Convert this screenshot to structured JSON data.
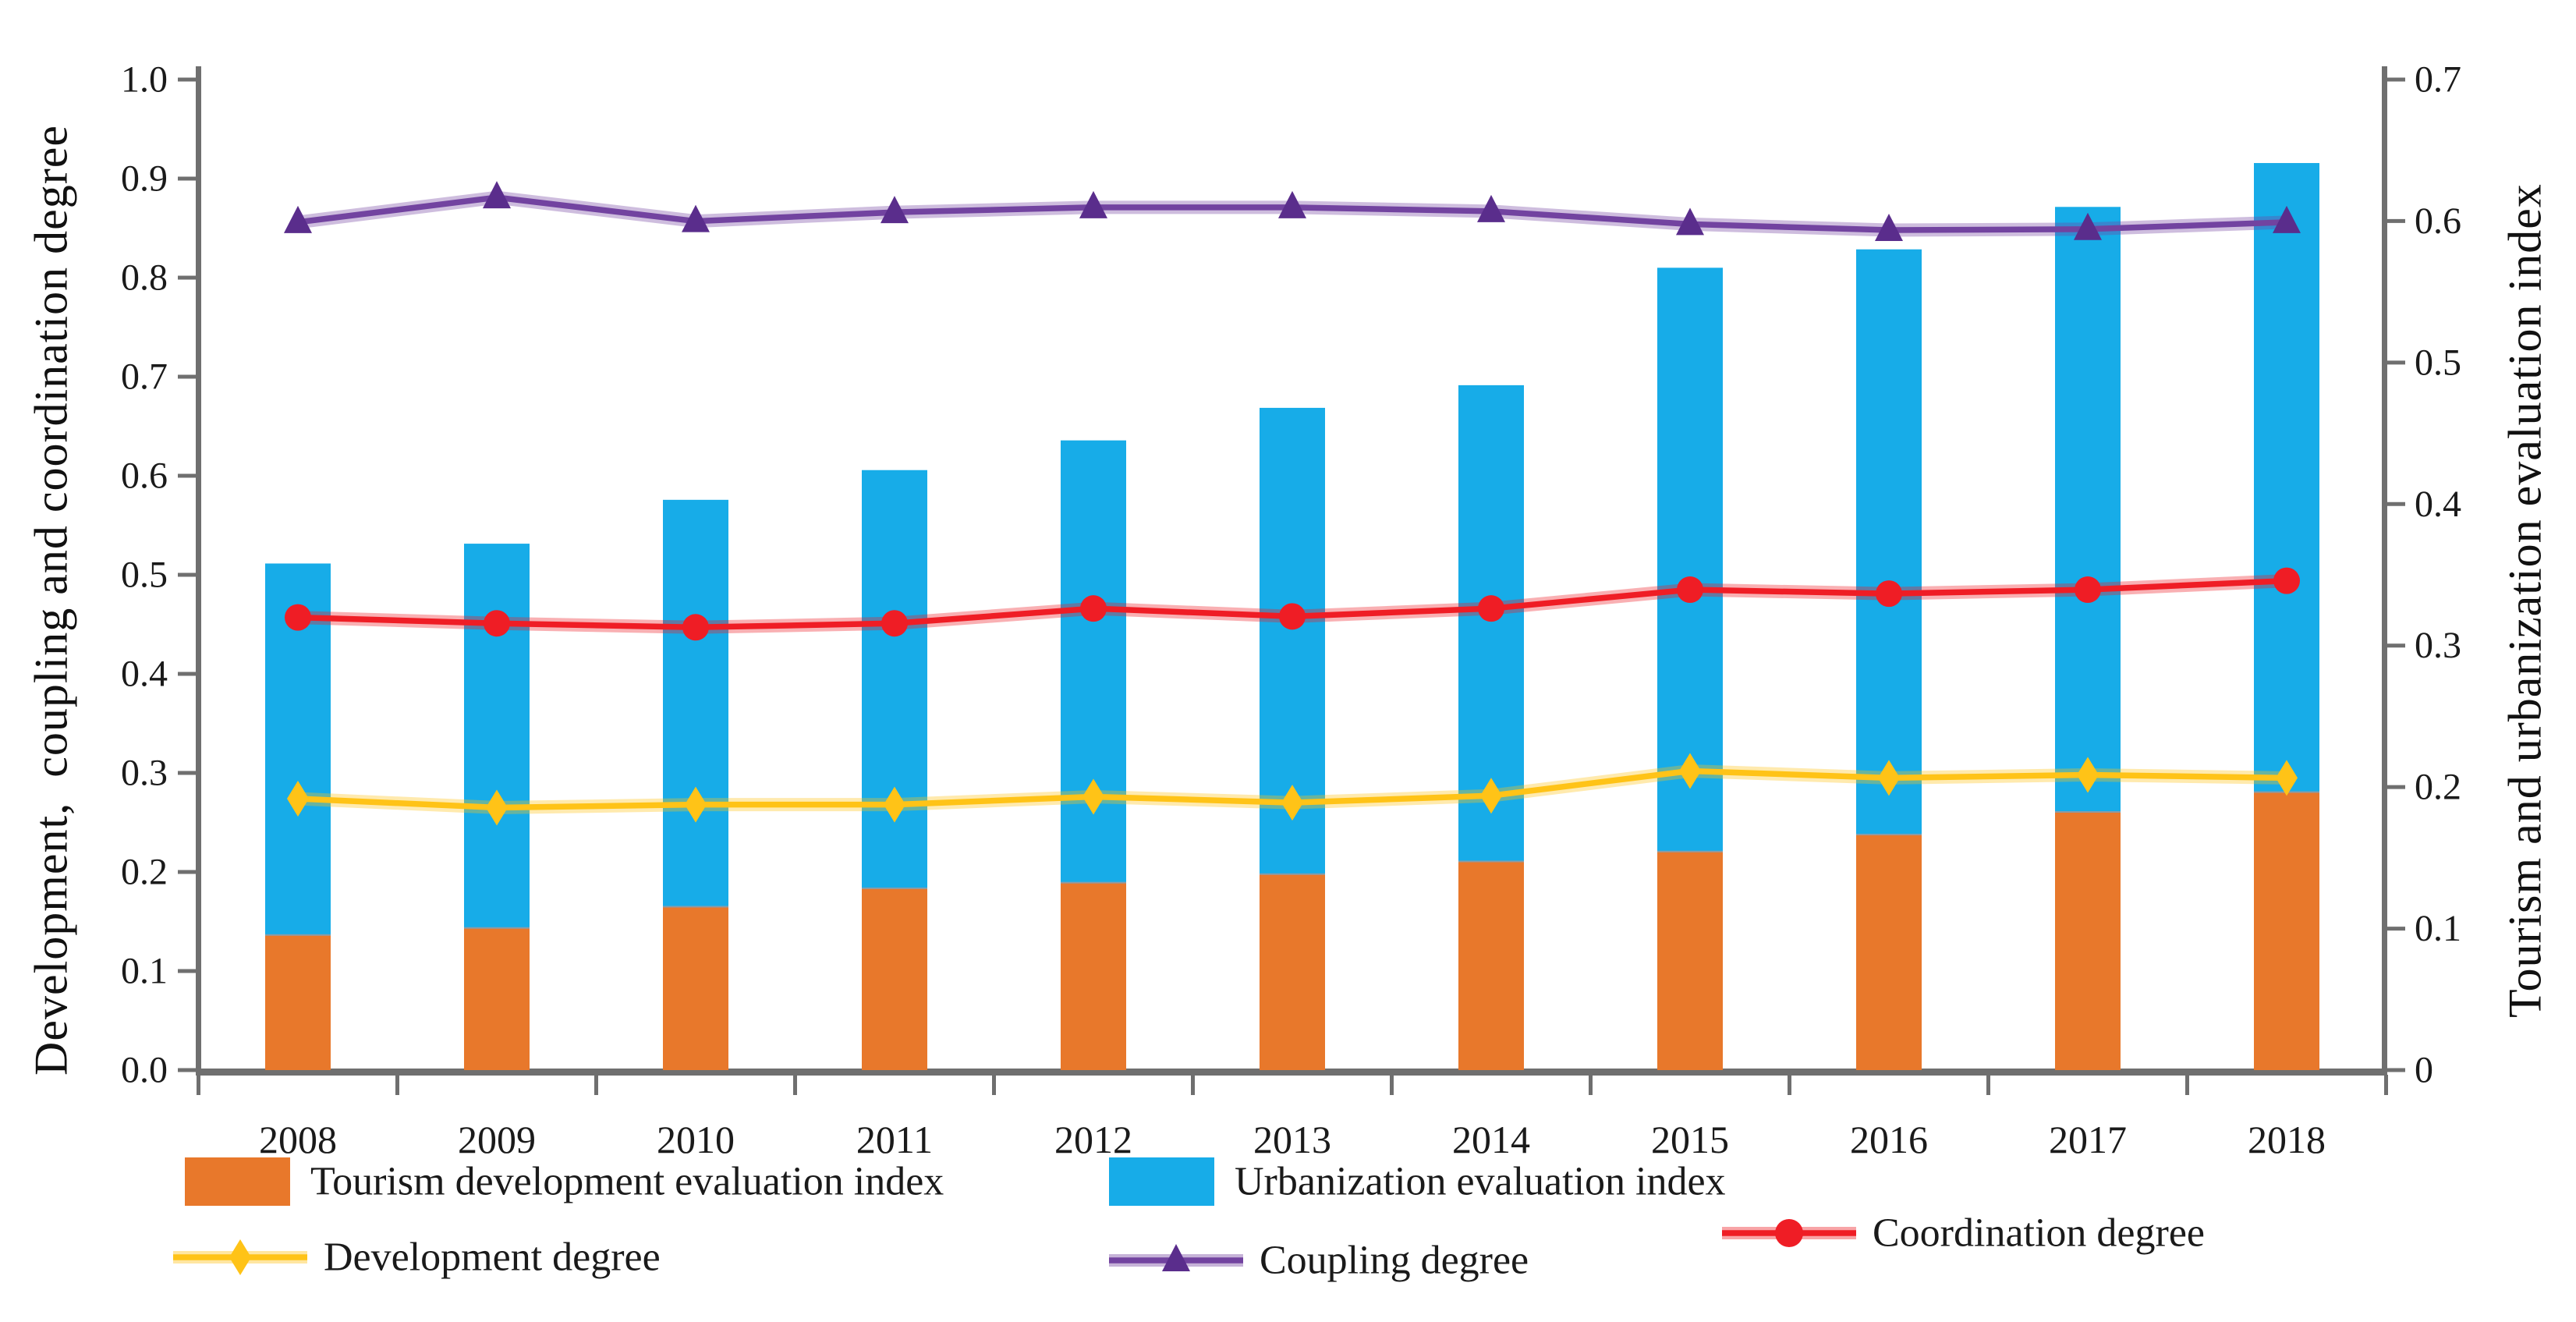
{
  "chart_data": {
    "type": "combo: stacked bars + lines (dual y-axis)",
    "categories": [
      "2008",
      "2009",
      "2010",
      "2011",
      "2012",
      "2013",
      "2014",
      "2015",
      "2016",
      "2017",
      "2018"
    ],
    "series": [
      {
        "name": "Tourism development evaluation index",
        "type": "bar",
        "stack": "evaluation",
        "axis": "right",
        "color": "#E8782B",
        "values": [
          0.096,
          0.101,
          0.116,
          0.129,
          0.133,
          0.139,
          0.148,
          0.155,
          0.167,
          0.183,
          0.197
        ]
      },
      {
        "name": "Urbanization evaluation index",
        "type": "bar",
        "stack": "evaluation",
        "axis": "right",
        "color": "#17ACE8",
        "values": [
          0.262,
          0.271,
          0.287,
          0.295,
          0.312,
          0.329,
          0.336,
          0.412,
          0.413,
          0.427,
          0.444
        ]
      },
      {
        "name": "Development degree",
        "type": "line",
        "marker": "diamond",
        "axis": "left",
        "color": "#FFC317",
        "marker_color": "#FFC317",
        "values": [
          0.274,
          0.265,
          0.268,
          0.268,
          0.276,
          0.27,
          0.277,
          0.302,
          0.295,
          0.298,
          0.295
        ]
      },
      {
        "name": "Coupling degree",
        "type": "line",
        "marker": "triangle",
        "axis": "left",
        "color": "#7243A0",
        "marker_color": "#5A2D8C",
        "values": [
          0.856,
          0.881,
          0.857,
          0.866,
          0.871,
          0.871,
          0.867,
          0.854,
          0.848,
          0.849,
          0.856
        ]
      },
      {
        "name": "Coordination degree",
        "type": "line",
        "marker": "circle",
        "axis": "left",
        "color": "#EF1D25",
        "marker_color": "#EF1D25",
        "values": [
          0.457,
          0.451,
          0.447,
          0.451,
          0.466,
          0.458,
          0.466,
          0.485,
          0.481,
          0.485,
          0.494
        ]
      }
    ],
    "left_axis": {
      "label": "Development,  coupling and coordination degree",
      "min": 0.0,
      "max": 1.0,
      "step": 0.1,
      "tick_labels": [
        "0.0",
        "0.1",
        "0.2",
        "0.3",
        "0.4",
        "0.5",
        "0.6",
        "0.7",
        "0.8",
        "0.9",
        "1.0"
      ]
    },
    "right_axis": {
      "label": "Tourism and urbanization evaluation index",
      "min": 0.0,
      "max": 0.7,
      "step": 0.1,
      "tick_labels": [
        "0",
        "0.1",
        "0.2",
        "0.3",
        "0.4",
        "0.5",
        "0.6",
        "0.7"
      ]
    },
    "x_axis": {
      "tick_labels": [
        "2008",
        "2009",
        "2010",
        "2011",
        "2012",
        "2013",
        "2014",
        "2015",
        "2016",
        "2017",
        "2018"
      ]
    },
    "legend_position": "bottom, two rows",
    "grid": false
  },
  "colors": {
    "spine": "#6F6F6F",
    "tick_text": "#1A1A1A",
    "stack_divider": "#8C9BA5",
    "background": "#FFFFFF"
  }
}
